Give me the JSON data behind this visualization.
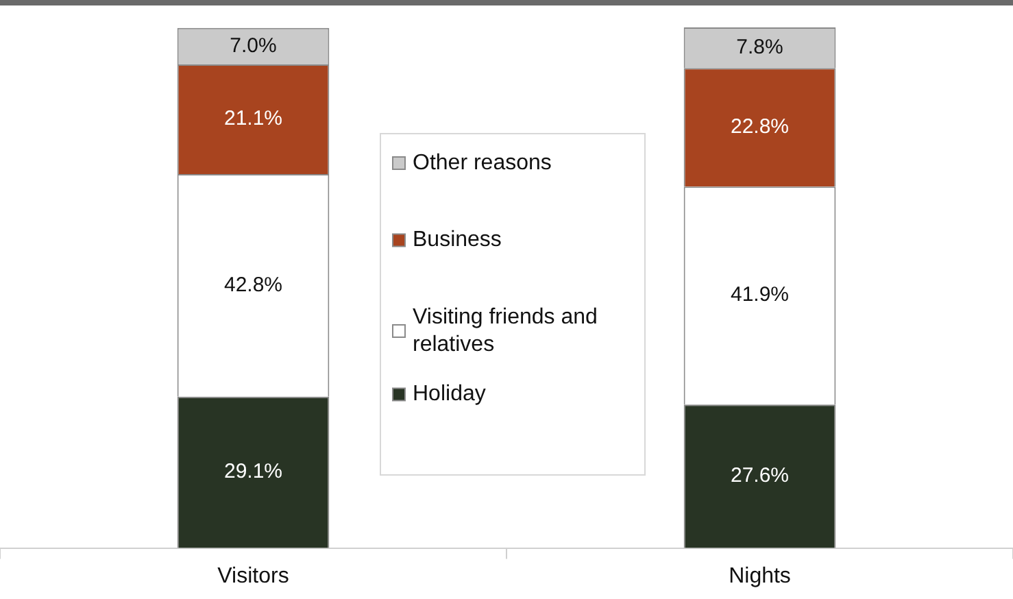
{
  "chart_data": {
    "type": "bar",
    "stacked": true,
    "categories": [
      "Visitors",
      "Nights"
    ],
    "legend": "center",
    "grid": false,
    "series": [
      {
        "name": "Holiday",
        "color": "#283424",
        "values": [
          29.1,
          27.6
        ],
        "value_labels": [
          "29.1%",
          "27.6%"
        ]
      },
      {
        "name": "Visiting friends and relatives",
        "color": "#ffffff",
        "values": [
          42.8,
          41.9
        ],
        "value_labels": [
          "42.8%",
          "41.9%"
        ]
      },
      {
        "name": "Business",
        "color": "#a8441f",
        "values": [
          21.1,
          22.8
        ],
        "value_labels": [
          "21.1%",
          "22.8%"
        ]
      },
      {
        "name": "Other reasons",
        "color": "#cacaca",
        "values": [
          7.0,
          7.8
        ],
        "value_labels": [
          "7.0%",
          "7.8%"
        ]
      }
    ]
  }
}
